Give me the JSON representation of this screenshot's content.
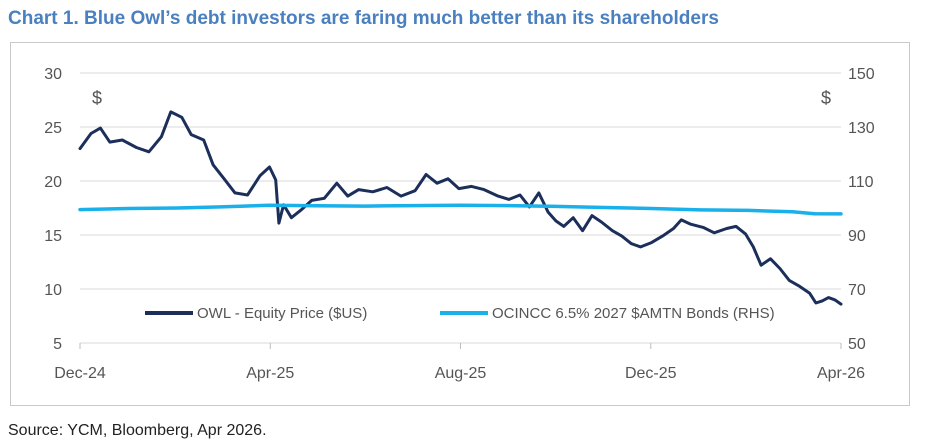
{
  "title": "Chart 1. Blue Owl’s debt investors are faring much better than its shareholders",
  "source": "Source: YCM, Bloomberg, Apr 2026.",
  "colors": {
    "title": "#4a80c0",
    "owl": "#1c2f5a",
    "bonds": "#1ab0ea",
    "grid": "#d9d9d9"
  },
  "chart_data": {
    "type": "line",
    "title": "Chart 1. Blue Owl’s debt investors are faring much better than its shareholders",
    "x_ticks": [
      "Dec-24",
      "Apr-25",
      "Aug-25",
      "Dec-25",
      "Apr-26"
    ],
    "x_range": [
      "2024-12-01",
      "2026-04-01"
    ],
    "y_left": {
      "ticks": [
        5,
        10,
        15,
        20,
        25,
        30
      ],
      "range": [
        5,
        30
      ],
      "unit": "$"
    },
    "y_right": {
      "ticks": [
        50,
        70,
        90,
        110,
        130,
        150
      ],
      "range": [
        50,
        150
      ],
      "unit": "$"
    },
    "grid": "horizontal",
    "legend_placement": "bottom",
    "series": [
      {
        "name": "OWL - Equity Price ($US)",
        "axis": "left",
        "color": "#1c2f5a",
        "points": [
          [
            "2024-12-01",
            23.0
          ],
          [
            "2024-12-08",
            24.4
          ],
          [
            "2024-12-14",
            24.9
          ],
          [
            "2024-12-20",
            23.6
          ],
          [
            "2024-12-28",
            23.8
          ],
          [
            "2025-01-06",
            23.1
          ],
          [
            "2025-01-14",
            22.7
          ],
          [
            "2025-01-22",
            24.1
          ],
          [
            "2025-01-28",
            26.4
          ],
          [
            "2025-02-04",
            25.9
          ],
          [
            "2025-02-10",
            24.3
          ],
          [
            "2025-02-18",
            23.8
          ],
          [
            "2025-02-24",
            21.5
          ],
          [
            "2025-03-03",
            20.2
          ],
          [
            "2025-03-10",
            18.9
          ],
          [
            "2025-03-18",
            18.7
          ],
          [
            "2025-03-26",
            20.5
          ],
          [
            "2025-04-01",
            21.3
          ],
          [
            "2025-04-05",
            20.1
          ],
          [
            "2025-04-07",
            16.1
          ],
          [
            "2025-04-10",
            17.8
          ],
          [
            "2025-04-15",
            16.6
          ],
          [
            "2025-04-21",
            17.3
          ],
          [
            "2025-04-28",
            18.2
          ],
          [
            "2025-05-06",
            18.4
          ],
          [
            "2025-05-14",
            19.8
          ],
          [
            "2025-05-21",
            18.6
          ],
          [
            "2025-05-28",
            19.2
          ],
          [
            "2025-06-06",
            19.0
          ],
          [
            "2025-06-15",
            19.4
          ],
          [
            "2025-06-24",
            18.6
          ],
          [
            "2025-07-03",
            19.1
          ],
          [
            "2025-07-10",
            20.6
          ],
          [
            "2025-07-17",
            19.8
          ],
          [
            "2025-07-24",
            20.2
          ],
          [
            "2025-07-31",
            19.3
          ],
          [
            "2025-08-08",
            19.5
          ],
          [
            "2025-08-16",
            19.2
          ],
          [
            "2025-08-25",
            18.6
          ],
          [
            "2025-09-01",
            18.3
          ],
          [
            "2025-09-08",
            18.7
          ],
          [
            "2025-09-14",
            17.6
          ],
          [
            "2025-09-20",
            18.9
          ],
          [
            "2025-09-26",
            17.1
          ],
          [
            "2025-10-01",
            16.3
          ],
          [
            "2025-10-06",
            15.8
          ],
          [
            "2025-10-12",
            16.6
          ],
          [
            "2025-10-18",
            15.4
          ],
          [
            "2025-10-24",
            16.8
          ],
          [
            "2025-10-30",
            16.2
          ],
          [
            "2025-11-06",
            15.4
          ],
          [
            "2025-11-12",
            14.9
          ],
          [
            "2025-11-18",
            14.2
          ],
          [
            "2025-11-24",
            13.9
          ],
          [
            "2025-12-01",
            14.3
          ],
          [
            "2025-12-08",
            14.9
          ],
          [
            "2025-12-15",
            15.6
          ],
          [
            "2025-12-20",
            16.4
          ],
          [
            "2025-12-26",
            16.0
          ],
          [
            "2026-01-03",
            15.7
          ],
          [
            "2026-01-10",
            15.2
          ],
          [
            "2026-01-18",
            15.6
          ],
          [
            "2026-01-24",
            15.8
          ],
          [
            "2026-01-30",
            15.1
          ],
          [
            "2026-02-04",
            13.9
          ],
          [
            "2026-02-09",
            12.2
          ],
          [
            "2026-02-15",
            12.8
          ],
          [
            "2026-02-21",
            11.9
          ],
          [
            "2026-02-27",
            10.8
          ],
          [
            "2026-03-05",
            10.3
          ],
          [
            "2026-03-12",
            9.6
          ],
          [
            "2026-03-16",
            8.7
          ],
          [
            "2026-03-20",
            8.9
          ],
          [
            "2026-03-24",
            9.2
          ],
          [
            "2026-03-28",
            9.0
          ],
          [
            "2026-04-01",
            8.6
          ]
        ]
      },
      {
        "name": "OCINCC 6.5% 2027 $AMTN Bonds (RHS)",
        "axis": "right",
        "color": "#1ab0ea",
        "points": [
          [
            "2024-12-01",
            99.4
          ],
          [
            "2025-01-01",
            99.8
          ],
          [
            "2025-02-01",
            100.0
          ],
          [
            "2025-03-01",
            100.4
          ],
          [
            "2025-04-01",
            101.0
          ],
          [
            "2025-05-01",
            100.8
          ],
          [
            "2025-06-01",
            100.7
          ],
          [
            "2025-07-01",
            100.9
          ],
          [
            "2025-08-01",
            101.0
          ],
          [
            "2025-09-01",
            100.9
          ],
          [
            "2025-10-01",
            100.6
          ],
          [
            "2025-11-01",
            100.2
          ],
          [
            "2025-12-01",
            99.8
          ],
          [
            "2026-01-01",
            99.3
          ],
          [
            "2026-02-01",
            99.1
          ],
          [
            "2026-03-01",
            98.6
          ],
          [
            "2026-03-15",
            97.9
          ],
          [
            "2026-04-01",
            97.8
          ]
        ]
      }
    ]
  }
}
